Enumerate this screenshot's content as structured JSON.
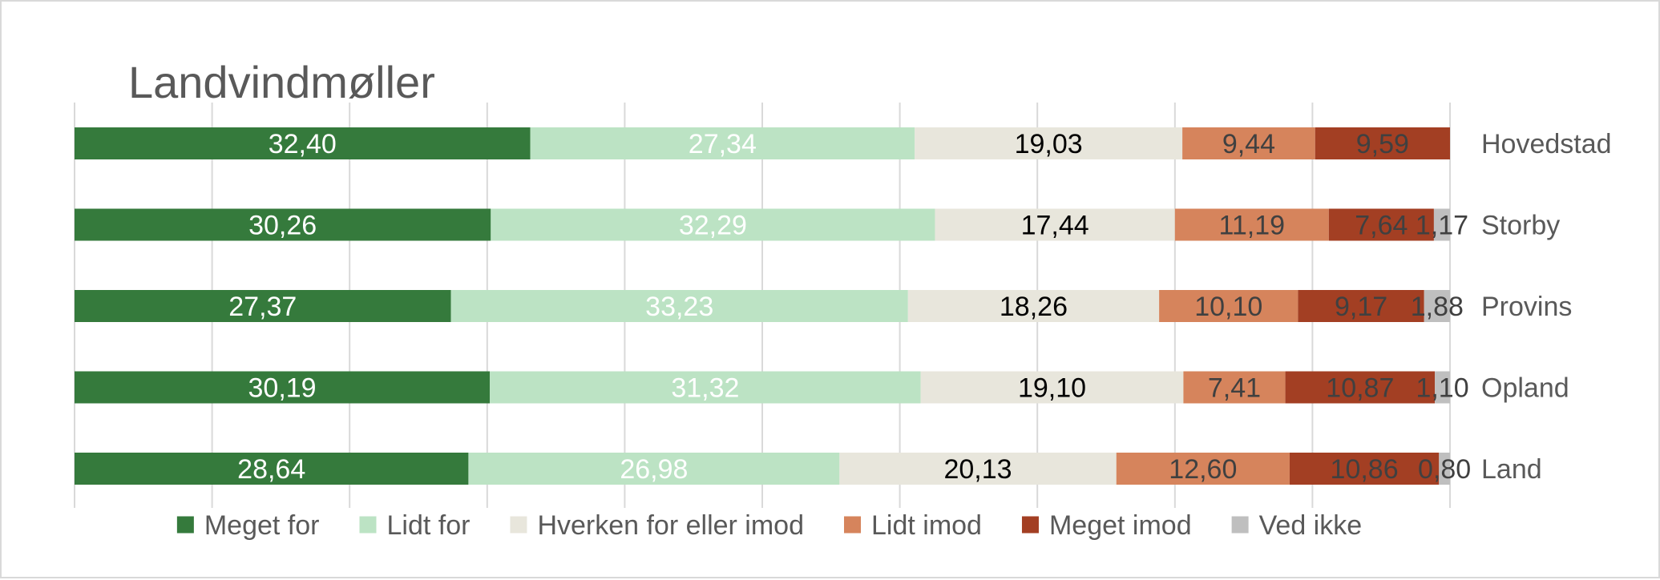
{
  "chart_data": {
    "type": "bar",
    "orientation": "horizontal",
    "stacked": "100%",
    "title": "Landvindmøller",
    "categories": [
      "Hovedstad",
      "Storby",
      "Provins",
      "Opland",
      "Land"
    ],
    "series": [
      {
        "name": "Meget for",
        "color": "#357a3c",
        "label_color": "#ffffff",
        "values": [
          32.4,
          30.26,
          27.37,
          30.19,
          28.64
        ],
        "labels": [
          "32,40",
          "30,26",
          "27,37",
          "30,19",
          "28,64"
        ]
      },
      {
        "name": "Lidt for",
        "color": "#bce3c4",
        "label_color": "#ffffff",
        "values": [
          27.34,
          32.29,
          33.23,
          31.32,
          26.98
        ],
        "labels": [
          "27,34",
          "32,29",
          "33,23",
          "31,32",
          "26,98"
        ]
      },
      {
        "name": "Hverken for eller imod",
        "color": "#e8e6dc",
        "label_color": "#000000",
        "values": [
          19.03,
          17.44,
          18.26,
          19.1,
          20.13
        ],
        "labels": [
          "19,03",
          "17,44",
          "18,26",
          "19,10",
          "20,13"
        ]
      },
      {
        "name": "Lidt imod",
        "color": "#d6845c",
        "label_color": "#404040",
        "values": [
          9.44,
          11.19,
          10.1,
          7.41,
          12.6
        ],
        "labels": [
          "9,44",
          "11,19",
          "10,10",
          "7,41",
          "12,60"
        ]
      },
      {
        "name": "Meget imod",
        "color": "#a33f23",
        "label_color": "#404040",
        "values": [
          9.59,
          7.64,
          9.17,
          10.87,
          10.86
        ],
        "labels": [
          "9,59",
          "7,64",
          "9,17",
          "10,87",
          "10,86"
        ]
      },
      {
        "name": "Ved ikke",
        "color": "#bfbfbf",
        "label_color": "#404040",
        "values": [
          0,
          1.17,
          1.88,
          1.1,
          0.8
        ],
        "labels": [
          "",
          "1,17",
          "1,88",
          "1,10",
          "0,80"
        ]
      }
    ],
    "xlim": [
      0,
      100
    ],
    "grid": true,
    "legend_position": "bottom",
    "category_labels_position": "right"
  }
}
